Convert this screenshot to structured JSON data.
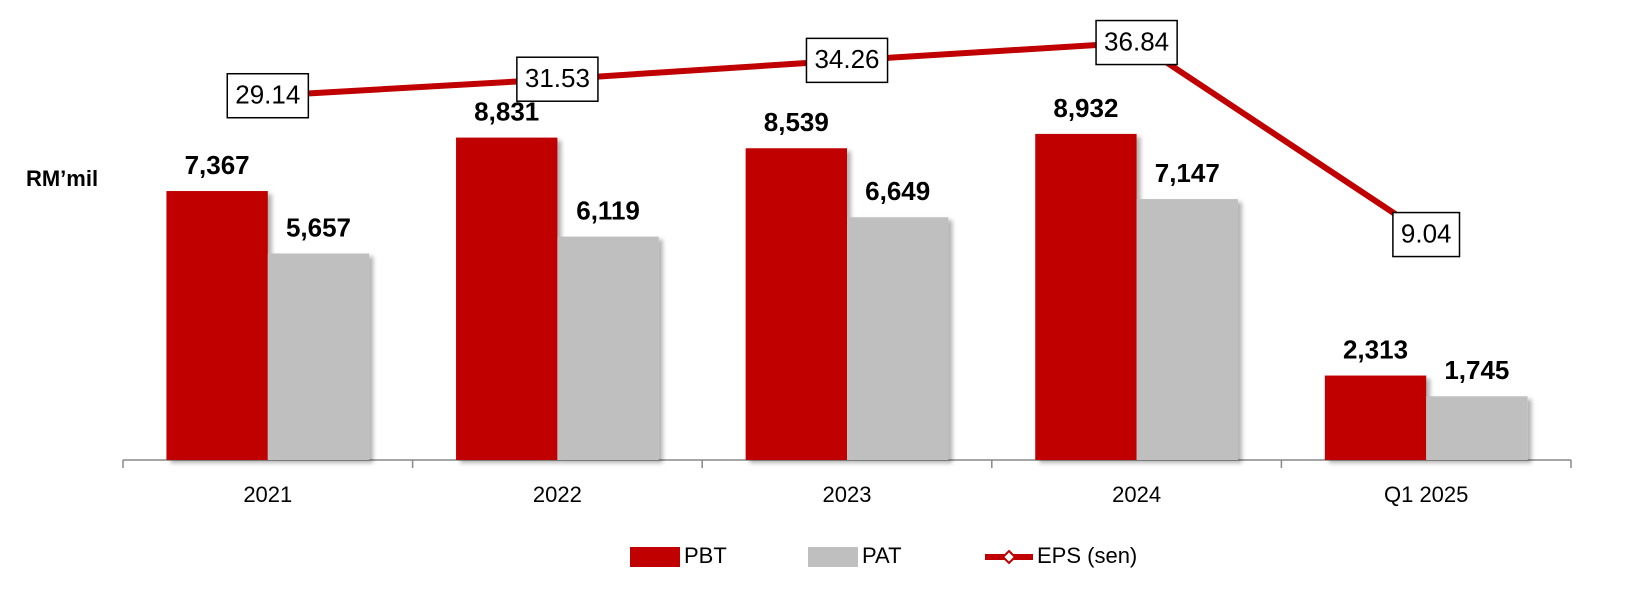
{
  "chart_data": {
    "type": "bar-line",
    "y_axis_label": "RM’mil",
    "categories": [
      "2021",
      "2022",
      "2023",
      "2024",
      "Q1 2025"
    ],
    "series": [
      {
        "name": "PBT",
        "type": "bar",
        "color": "#c00000",
        "values": [
          7367,
          8831,
          8539,
          8932,
          2313
        ],
        "value_labels": [
          "7,367",
          "8,831",
          "8,539",
          "8,932",
          "2,313"
        ]
      },
      {
        "name": "PAT",
        "type": "bar",
        "color": "#bfbfbf",
        "values": [
          5657,
          6119,
          6649,
          7147,
          1745
        ],
        "value_labels": [
          "5,657",
          "6,119",
          "6,649",
          "7,147",
          "1,745"
        ]
      },
      {
        "name": "EPS (sen)",
        "type": "line",
        "axis": "y2",
        "color": "#c00000",
        "values": [
          29.14,
          31.53,
          34.26,
          36.84,
          9.04
        ]
      }
    ],
    "ylim": [
      0,
      12600
    ],
    "y2lim": [
      -23.6,
      43
    ],
    "legend": "bottom"
  }
}
